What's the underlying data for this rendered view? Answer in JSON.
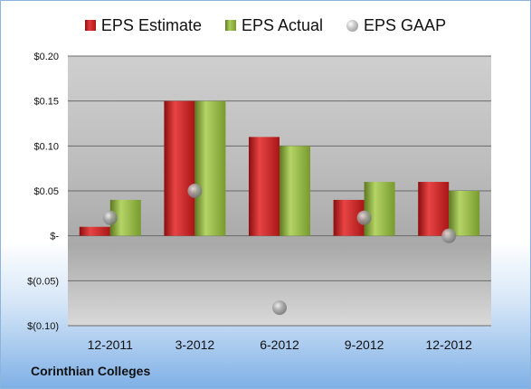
{
  "chart_data": {
    "type": "bar",
    "categories": [
      "12-2011",
      "3-2012",
      "6-2012",
      "9-2012",
      "12-2012"
    ],
    "series": [
      {
        "name": "EPS Estimate",
        "type": "bar",
        "values": [
          0.01,
          0.15,
          0.11,
          0.04,
          0.06
        ]
      },
      {
        "name": "EPS Actual",
        "type": "bar",
        "values": [
          0.04,
          0.15,
          0.1,
          0.06,
          0.05
        ]
      },
      {
        "name": "EPS GAAP",
        "type": "marker",
        "values": [
          0.02,
          0.05,
          -0.08,
          0.02,
          0.0
        ]
      }
    ],
    "ylim": [
      -0.1,
      0.2
    ],
    "yticks": [
      0.2,
      0.15,
      0.1,
      0.05,
      0.0,
      -0.05,
      -0.1
    ],
    "ytick_labels": [
      "$0.20",
      "$0.15",
      "$0.10",
      "$0.05",
      "$-",
      "$(0.05)",
      "$(0.10)"
    ],
    "grid": true,
    "legend_position": "top",
    "colors": {
      "estimate": "#c81e1e",
      "actual": "#8db043",
      "gaap": "#a0a0a0"
    }
  },
  "footer": {
    "company": "Corinthian Colleges"
  }
}
